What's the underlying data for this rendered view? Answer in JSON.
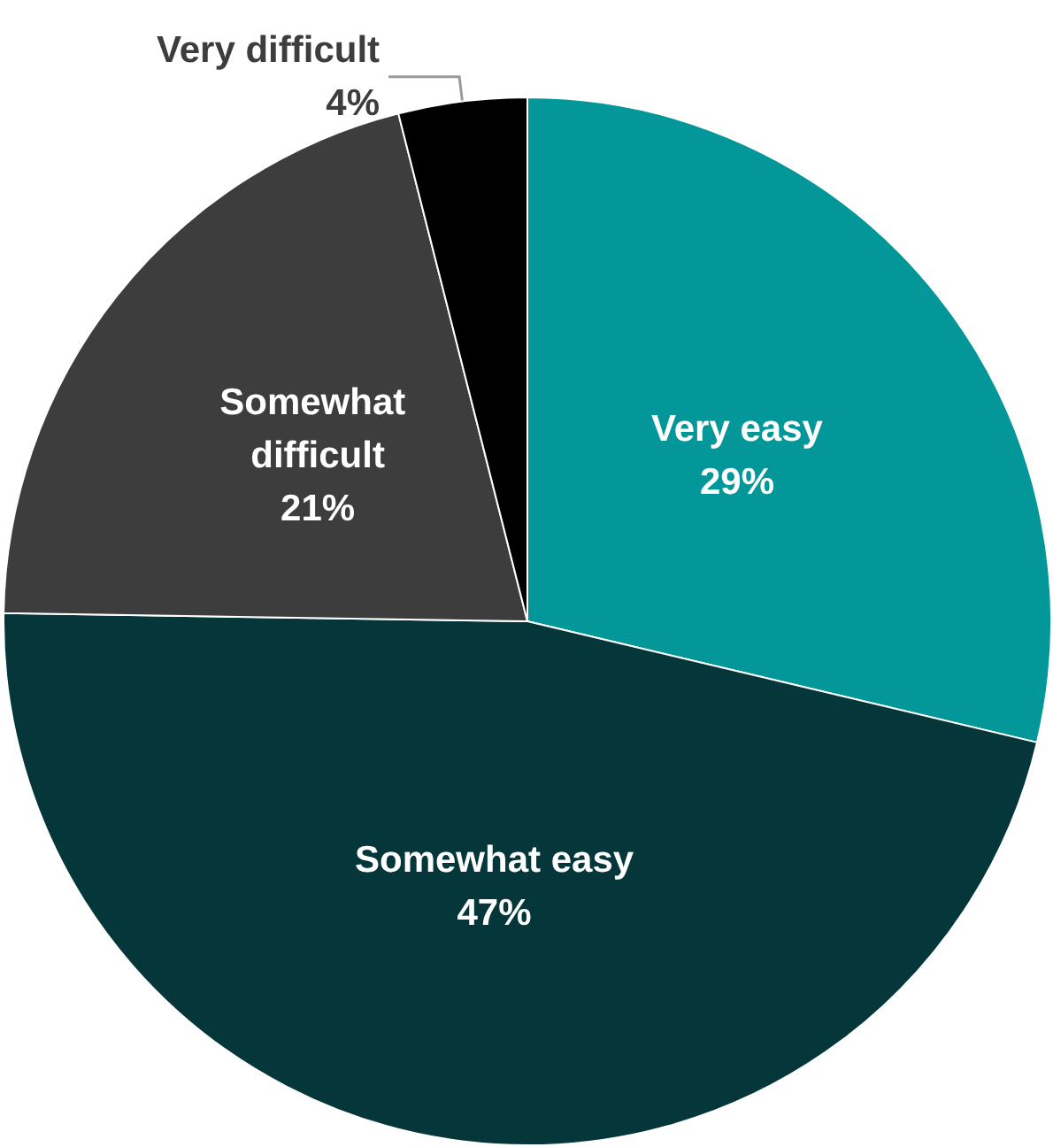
{
  "chart_data": {
    "type": "pie",
    "categories": [
      "Very easy",
      "Somewhat easy",
      "Somewhat difficult",
      "Very difficult"
    ],
    "values": [
      29,
      47,
      21,
      4
    ],
    "colors": [
      "#03979a",
      "#04363a",
      "#3d3d3d",
      "#000000"
    ],
    "value_labels": [
      "29%",
      "47%",
      "21%",
      "4%"
    ],
    "legend": false
  }
}
